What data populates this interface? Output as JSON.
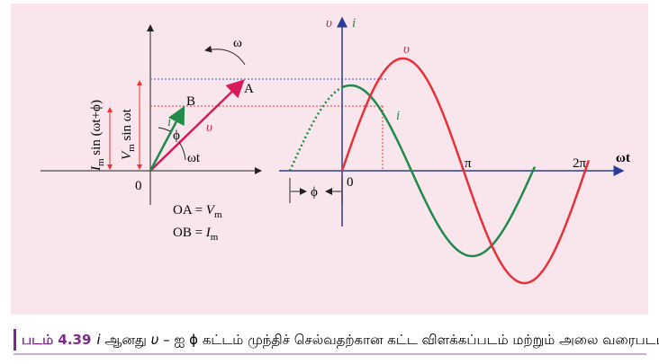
{
  "phasor_diagram": {
    "omega": "ω",
    "point_a": "A",
    "point_b": "B",
    "current": "i",
    "phase": "ϕ",
    "voltage": "υ",
    "angle": "ωt",
    "origin": "0",
    "current_projection": {
      "symbol": "I",
      "subscript": "m",
      "expression": " sin (ωt+ϕ)"
    },
    "voltage_projection": {
      "symbol": "V",
      "subscript": "m",
      "expression": " sin ωt"
    },
    "oa": {
      "text": "OA = ",
      "symbol": "V",
      "subscript": "m"
    },
    "ob": {
      "text": "OB = ",
      "symbol": "I",
      "subscript": "m"
    }
  },
  "waveform": {
    "axis_voltage": "υ",
    "axis_current": "i",
    "voltage_curve": "υ",
    "current_curve": "i",
    "pi": "π",
    "two_pi": "2π",
    "x_axis": "ωt",
    "origin": "0",
    "phase": "ϕ"
  },
  "caption": {
    "label": "படம் 4.39",
    "current": "i",
    "middle": " ஆனது ",
    "voltage": "υ",
    "text": " – ஐ ϕ கட்டம் முந்திச் செல்வதற்கான கட்ட விளக்கப்படம் மற்றும் அலை வரைபடம்"
  }
}
